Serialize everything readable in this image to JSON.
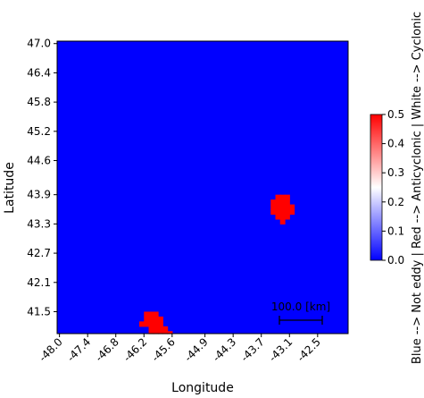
{
  "chart_data": {
    "type": "heatmap",
    "title": "",
    "xlabel": "Longitude",
    "ylabel": "Latitude",
    "xlim": [
      -48.05,
      -41.85
    ],
    "ylim": [
      41.05,
      47.05
    ],
    "xticks": [
      "-48.0",
      "-47.4",
      "-46.8",
      "-46.2",
      "-45.6",
      "-44.9",
      "-44.3",
      "-43.7",
      "-43.1",
      "-42.5"
    ],
    "yticks": [
      "47.0",
      "46.4",
      "45.8",
      "45.2",
      "44.6",
      "43.9",
      "43.3",
      "42.7",
      "42.1",
      "41.5"
    ],
    "background_value": 0.0,
    "background_color": "#0000ff",
    "eddy_color": "#ff0000",
    "eddies": [
      {
        "type": "Anticyclonic",
        "value": 0.5,
        "cells": [
          [
            -43.35,
            43.85
          ],
          [
            -43.25,
            43.85
          ],
          [
            -43.15,
            43.85
          ],
          [
            -43.45,
            43.75
          ],
          [
            -43.35,
            43.75
          ],
          [
            -43.25,
            43.75
          ],
          [
            -43.15,
            43.75
          ],
          [
            -43.45,
            43.65
          ],
          [
            -43.35,
            43.65
          ],
          [
            -43.25,
            43.65
          ],
          [
            -43.15,
            43.65
          ],
          [
            -43.05,
            43.65
          ],
          [
            -43.45,
            43.55
          ],
          [
            -43.35,
            43.55
          ],
          [
            -43.25,
            43.55
          ],
          [
            -43.15,
            43.55
          ],
          [
            -43.05,
            43.55
          ],
          [
            -43.35,
            43.45
          ],
          [
            -43.25,
            43.45
          ],
          [
            -43.15,
            43.45
          ],
          [
            -43.25,
            43.35
          ]
        ]
      },
      {
        "type": "Anticyclonic",
        "value": 0.5,
        "cells": [
          [
            -46.15,
            41.45
          ],
          [
            -46.05,
            41.45
          ],
          [
            -45.95,
            41.45
          ],
          [
            -46.15,
            41.35
          ],
          [
            -46.05,
            41.35
          ],
          [
            -45.95,
            41.35
          ],
          [
            -45.85,
            41.35
          ],
          [
            -46.25,
            41.25
          ],
          [
            -46.15,
            41.25
          ],
          [
            -46.05,
            41.25
          ],
          [
            -45.95,
            41.25
          ],
          [
            -45.85,
            41.25
          ],
          [
            -46.05,
            41.15
          ],
          [
            -45.95,
            41.15
          ],
          [
            -45.85,
            41.15
          ],
          [
            -45.75,
            41.15
          ],
          [
            -46.05,
            41.05
          ],
          [
            -45.95,
            41.05
          ],
          [
            -45.85,
            41.05
          ],
          [
            -45.75,
            41.05
          ],
          [
            -45.65,
            41.05
          ]
        ]
      }
    ],
    "colorbar": {
      "label": "Blue --> Not eddy | Red --> Anticyclonic | White --> Cyclonic",
      "range": [
        0.0,
        0.5
      ],
      "ticks": [
        "0.0",
        "0.1",
        "0.2",
        "0.3",
        "0.4",
        "0.5"
      ],
      "colormap": [
        "#0000ff",
        "#ffffff",
        "#ff0000"
      ]
    },
    "scalebar": {
      "label": "100.0 [km]"
    }
  }
}
